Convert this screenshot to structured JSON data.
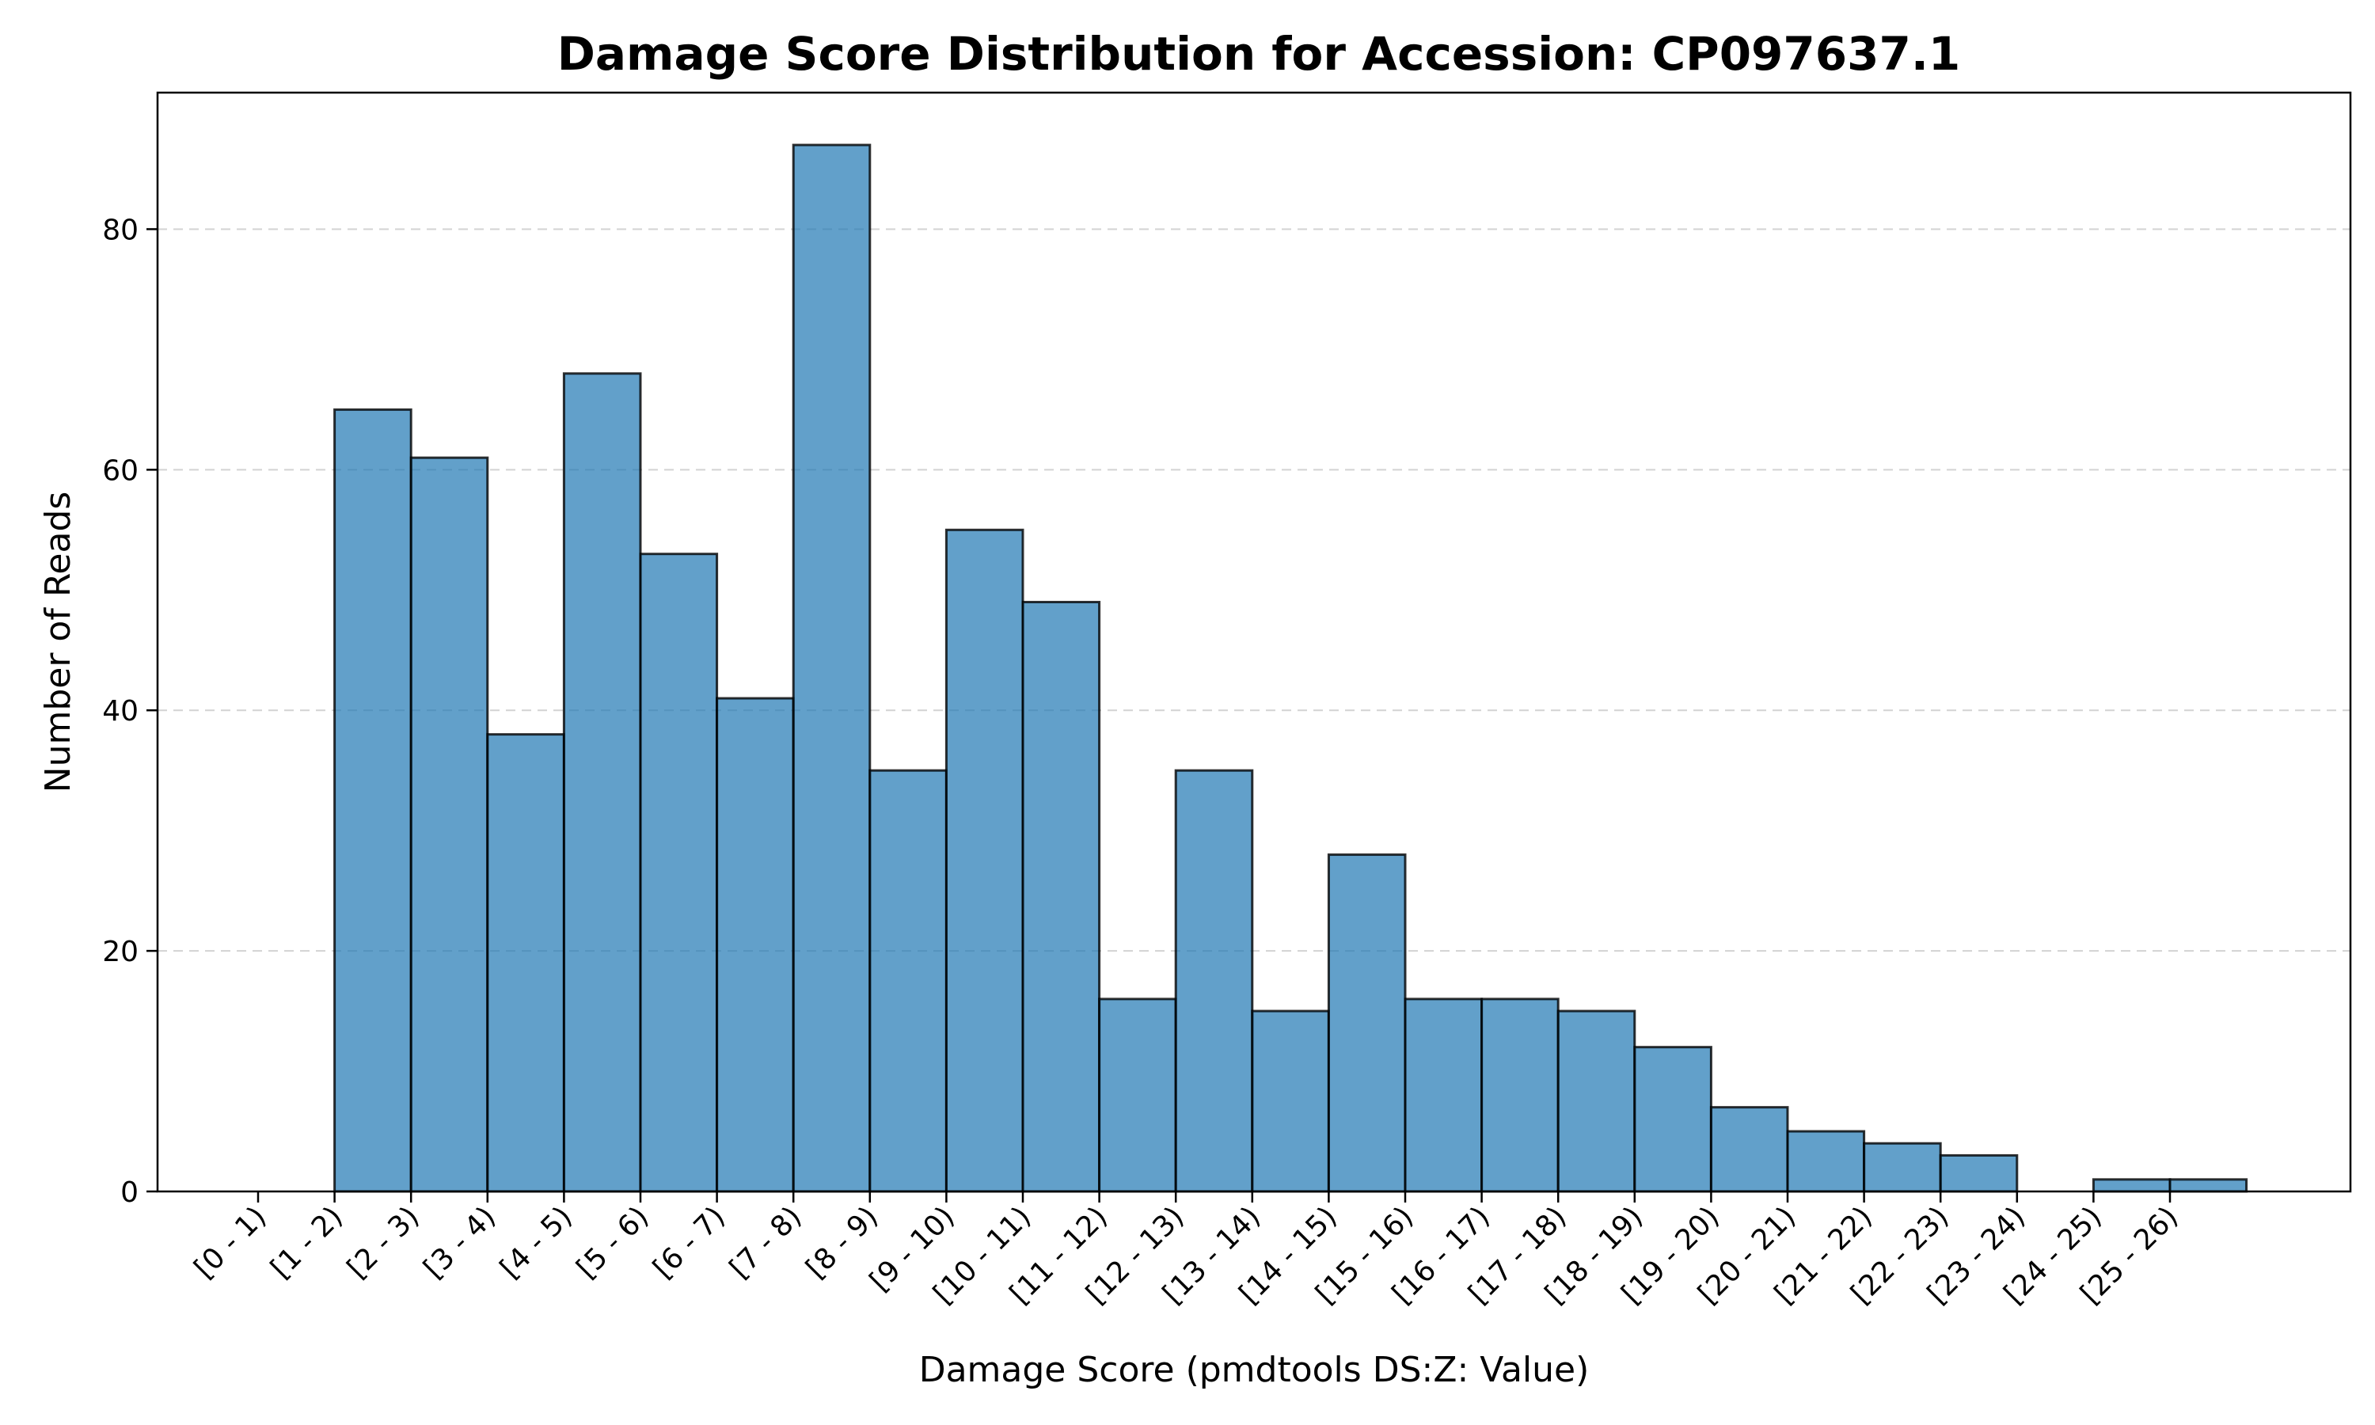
{
  "chart_data": {
    "type": "bar",
    "title": "Damage Score Distribution for Accession: CP097637.1",
    "xlabel": "Damage Score (pmdtools DS:Z: Value)",
    "ylabel": "Number of Reads",
    "categories": [
      "[0 - 1)",
      "[1 - 2)",
      "[2 - 3)",
      "[3 - 4)",
      "[4 - 5)",
      "[5 - 6)",
      "[6 - 7)",
      "[7 - 8)",
      "[8 - 9)",
      "[9 - 10)",
      "[10 - 11)",
      "[11 - 12)",
      "[12 - 13)",
      "[13 - 14)",
      "[14 - 15)",
      "[15 - 16)",
      "[16 - 17)",
      "[17 - 18)",
      "[18 - 19)",
      "[19 - 20)",
      "[20 - 21)",
      "[21 - 22)",
      "[22 - 23)",
      "[23 - 24)",
      "[24 - 25)",
      "[25 - 26)"
    ],
    "values": [
      0,
      65,
      61,
      38,
      68,
      53,
      41,
      87,
      35,
      55,
      49,
      16,
      35,
      15,
      28,
      16,
      16,
      15,
      12,
      7,
      5,
      4,
      3,
      0,
      1,
      1
    ],
    "ylim": [
      0,
      91.35
    ],
    "yticks": [
      0,
      20,
      40,
      60,
      80
    ],
    "grid": "y, dashed",
    "color": "#1f77b4",
    "edge_color": "#000000"
  }
}
